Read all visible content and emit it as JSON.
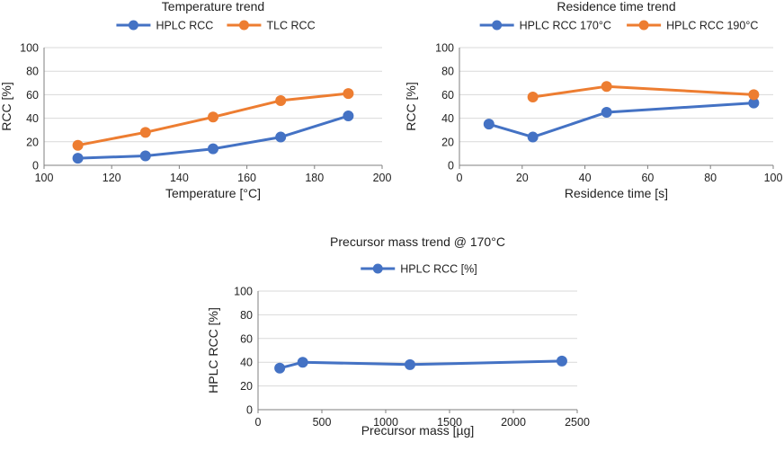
{
  "chart_data": [
    {
      "type": "line",
      "title": "Temperature trend",
      "xlabel": "Temperature [°C]",
      "ylabel": "RCC [%]",
      "xlim": [
        100,
        200
      ],
      "ylim": [
        0,
        100
      ],
      "xticks": [
        "100",
        "120",
        "140",
        "160",
        "180",
        "200"
      ],
      "yticks": [
        "0",
        "20",
        "40",
        "60",
        "80",
        "100"
      ],
      "grid": "horizontal",
      "legend": "top",
      "series": [
        {
          "name": "HPLC RCC",
          "color": "#4472c4",
          "x": [
            110,
            130,
            150,
            170,
            190
          ],
          "y": [
            6,
            8,
            14,
            24,
            42
          ]
        },
        {
          "name": "TLC RCC",
          "color": "#ed7d31",
          "x": [
            110,
            130,
            150,
            170,
            190
          ],
          "y": [
            17,
            28,
            41,
            55,
            61
          ]
        }
      ]
    },
    {
      "type": "line",
      "title": "Residence time trend",
      "xlabel": "Residence time [s]",
      "ylabel": "RCC [%]",
      "xlim": [
        0,
        100
      ],
      "ylim": [
        0,
        100
      ],
      "xticks": [
        "0",
        "20",
        "40",
        "60",
        "80",
        "100"
      ],
      "yticks": [
        "0",
        "20",
        "40",
        "60",
        "80",
        "100"
      ],
      "grid": "horizontal",
      "legend": "top",
      "series": [
        {
          "name": "HPLC RCC 170°C",
          "color": "#4472c4",
          "x": [
            9.4,
            23.4,
            46.9,
            93.8
          ],
          "y": [
            35,
            24,
            45,
            53
          ]
        },
        {
          "name": "HPLC RCC 190°C",
          "color": "#ed7d31",
          "x": [
            23.4,
            46.9,
            93.8
          ],
          "y": [
            58,
            67,
            60
          ]
        }
      ]
    },
    {
      "type": "line",
      "title": "Precursor mass trend @ 170°C",
      "xlabel": "Precursor mass [µg]",
      "ylabel": "HPLC RCC [%]",
      "xlim": [
        0,
        2500
      ],
      "ylim": [
        0,
        100
      ],
      "xticks": [
        "0",
        "500",
        "1000",
        "1500",
        "2000",
        "2500"
      ],
      "yticks": [
        "0",
        "20",
        "40",
        "60",
        "80",
        "100"
      ],
      "grid": "horizontal",
      "legend": "top",
      "series": [
        {
          "name": "HPLC RCC [%]",
          "color": "#4472c4",
          "x": [
            170,
            350,
            1190,
            2380
          ],
          "y": [
            35,
            40,
            38,
            41
          ]
        }
      ]
    }
  ]
}
